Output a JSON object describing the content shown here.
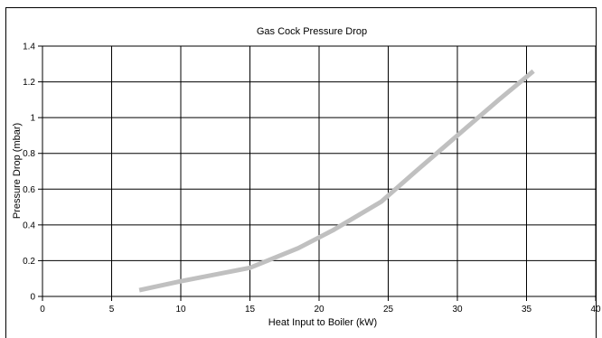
{
  "chart_data": {
    "type": "line",
    "title": "Gas Cock Pressure Drop",
    "xlabel": "Heat Input to Boiler (kW)",
    "ylabel": "Pressure Drop (mbar)",
    "xlim": [
      0,
      40
    ],
    "ylim": [
      0,
      1.4
    ],
    "x_ticks": [
      0,
      5,
      10,
      15,
      20,
      25,
      30,
      35,
      40
    ],
    "x_tick_labels": [
      "0",
      "5",
      "10",
      "15",
      "20",
      "25",
      "30",
      "35",
      "40"
    ],
    "y_ticks": [
      0,
      0.2,
      0.4,
      0.6,
      0.8,
      1.0,
      1.2,
      1.4
    ],
    "y_tick_labels": [
      "0",
      "0.2",
      "0.4",
      "0.6",
      "0.8",
      "1",
      "1.2",
      "1.4"
    ],
    "grid": true,
    "legend": "none",
    "series": [
      {
        "color": "#c0c0c0",
        "x": [
          7,
          10,
          15,
          18.5,
          21,
          24.5,
          27,
          30,
          33,
          35.5
        ],
        "y": [
          0.035,
          0.085,
          0.16,
          0.27,
          0.37,
          0.53,
          0.7,
          0.9,
          1.1,
          1.26
        ]
      }
    ]
  }
}
